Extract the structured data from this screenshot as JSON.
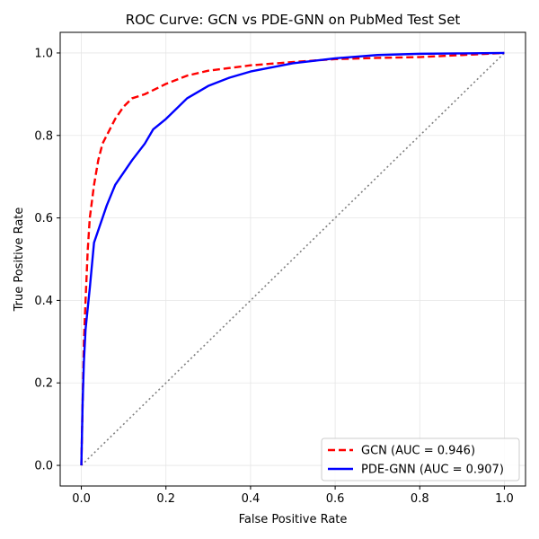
{
  "chart_data": {
    "type": "line",
    "title": "ROC Curve: GCN vs PDE-GNN on PubMed Test Set",
    "xlabel": "False Positive Rate",
    "ylabel": "True Positive Rate",
    "xlim": [
      -0.05,
      1.05
    ],
    "ylim": [
      -0.05,
      1.05
    ],
    "xticks": [
      0.0,
      0.2,
      0.4,
      0.6,
      0.8,
      1.0
    ],
    "yticks": [
      0.0,
      0.2,
      0.4,
      0.6,
      0.8,
      1.0
    ],
    "xtick_labels": [
      "0.0",
      "0.2",
      "0.4",
      "0.6",
      "0.8",
      "1.0"
    ],
    "ytick_labels": [
      "0.0",
      "0.2",
      "0.4",
      "0.6",
      "0.8",
      "1.0"
    ],
    "grid": true,
    "legend_position": "lower-right",
    "series": [
      {
        "name": "GCN (AUC = 0.946)",
        "color": "#ff0000",
        "line_style": "dashed",
        "x": [
          0.0,
          0.003,
          0.006,
          0.01,
          0.015,
          0.02,
          0.03,
          0.04,
          0.05,
          0.06,
          0.08,
          0.1,
          0.12,
          0.15,
          0.2,
          0.25,
          0.3,
          0.4,
          0.5,
          0.6,
          0.7,
          0.8,
          0.9,
          1.0
        ],
        "y": [
          0.0,
          0.15,
          0.3,
          0.4,
          0.52,
          0.6,
          0.68,
          0.74,
          0.78,
          0.8,
          0.84,
          0.87,
          0.89,
          0.9,
          0.925,
          0.945,
          0.957,
          0.97,
          0.978,
          0.985,
          0.988,
          0.99,
          0.995,
          1.0
        ]
      },
      {
        "name": "PDE-GNN (AUC = 0.907)",
        "color": "#0000ff",
        "line_style": "solid",
        "x": [
          0.0,
          0.003,
          0.006,
          0.01,
          0.02,
          0.03,
          0.04,
          0.05,
          0.06,
          0.08,
          0.1,
          0.12,
          0.15,
          0.17,
          0.2,
          0.25,
          0.3,
          0.35,
          0.4,
          0.5,
          0.6,
          0.7,
          0.8,
          0.9,
          1.0
        ],
        "y": [
          0.0,
          0.15,
          0.25,
          0.33,
          0.43,
          0.54,
          0.57,
          0.6,
          0.63,
          0.68,
          0.71,
          0.74,
          0.78,
          0.815,
          0.84,
          0.89,
          0.92,
          0.94,
          0.955,
          0.975,
          0.987,
          0.995,
          0.998,
          0.999,
          1.0
        ]
      },
      {
        "name": "",
        "color": "#808080",
        "line_style": "dotted",
        "x": [
          0.0,
          1.0
        ],
        "y": [
          0.0,
          1.0
        ]
      }
    ]
  }
}
